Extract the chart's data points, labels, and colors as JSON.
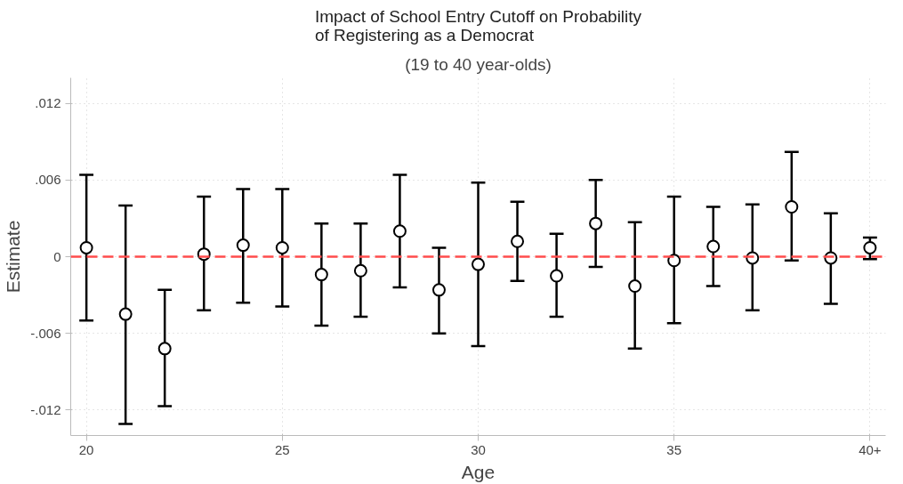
{
  "chart_data": {
    "type": "scatter",
    "title": "Impact of School Entry Cutoff on Probability\nof Registering as a Democrat",
    "subtitle": "(19 to 40 year-olds)",
    "xlabel": "Age",
    "ylabel": "Estimate",
    "x": [
      20,
      21,
      22,
      23,
      24,
      25,
      26,
      27,
      28,
      29,
      30,
      31,
      32,
      33,
      34,
      35,
      36,
      37,
      38,
      39,
      40
    ],
    "series": [
      {
        "color": "#000000",
        "values": [
          0.0007,
          -0.0045,
          -0.0072,
          0.0002,
          0.0009,
          0.0007,
          -0.0014,
          -0.0011,
          0.002,
          -0.0026,
          -0.0006,
          0.0012,
          -0.0015,
          0.0026,
          -0.0023,
          -0.0003,
          0.0008,
          -0.0001,
          0.0039,
          -0.0001,
          0.0007
        ],
        "errors": [
          [
            -0.005,
            0.0064
          ],
          [
            -0.0131,
            0.004
          ],
          [
            -0.0117,
            -0.0026
          ],
          [
            -0.0042,
            0.0047
          ],
          [
            -0.0036,
            0.0053
          ],
          [
            -0.0039,
            0.0053
          ],
          [
            -0.0054,
            0.0026
          ],
          [
            -0.0047,
            0.0026
          ],
          [
            -0.0024,
            0.0064
          ],
          [
            -0.006,
            0.0007
          ],
          [
            -0.007,
            0.0058
          ],
          [
            -0.0019,
            0.0043
          ],
          [
            -0.0047,
            0.0018
          ],
          [
            -0.0008,
            0.006
          ],
          [
            -0.0072,
            0.0027
          ],
          [
            -0.0052,
            0.0047
          ],
          [
            -0.0023,
            0.0039
          ],
          [
            -0.0042,
            0.0041
          ],
          [
            -0.0003,
            0.0082
          ],
          [
            -0.0037,
            0.0034
          ],
          [
            -0.0002,
            0.0015
          ]
        ]
      }
    ],
    "marker": "circle",
    "xlim": [
      19.6,
      40.4
    ],
    "ylim": [
      -0.014,
      0.014
    ],
    "xticks": [
      20,
      25,
      30,
      35,
      {
        "value": 40,
        "label": "40+"
      }
    ],
    "yticks": [
      {
        "value": 0.012,
        "label": ".012"
      },
      {
        "value": 0.006,
        "label": ".006"
      },
      0,
      {
        "value": -0.006,
        "label": "-.006"
      },
      {
        "value": -0.012,
        "label": "-.012"
      }
    ],
    "grid": true,
    "ref_lines": [
      {
        "axis": "y",
        "value": 0,
        "color": "#ff4c4c",
        "line_style": "dashed"
      }
    ]
  }
}
